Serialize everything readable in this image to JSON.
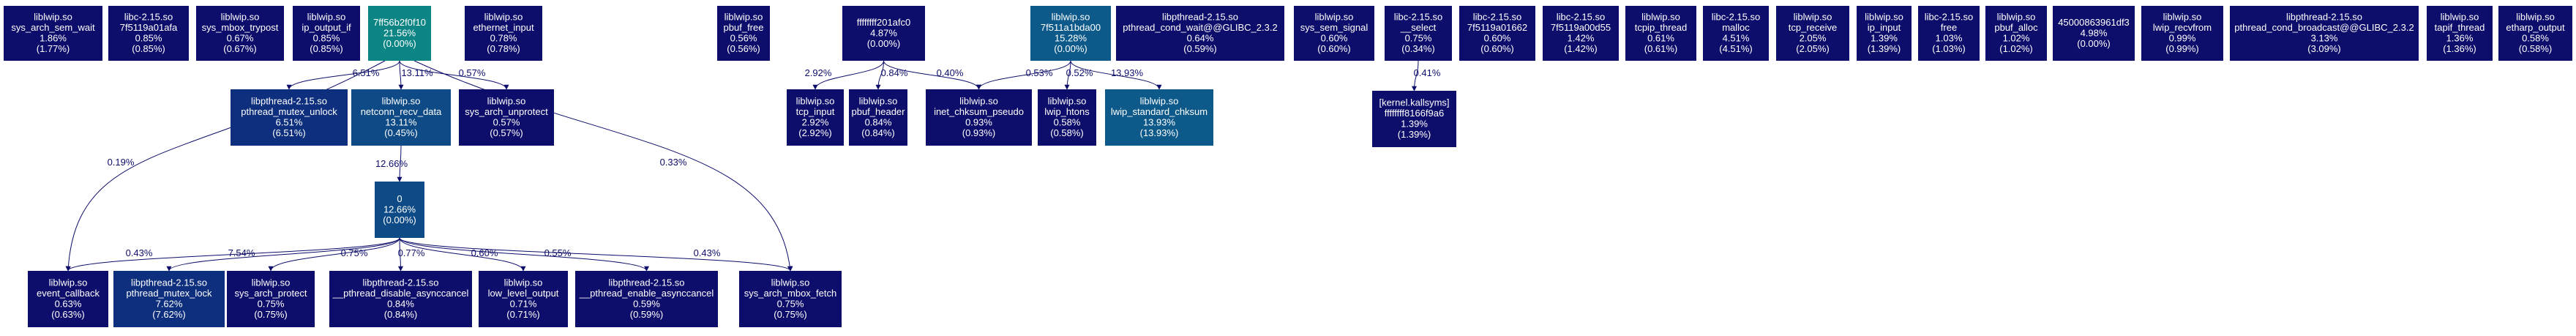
{
  "colors": {
    "dark_navy": "#0d0d6b",
    "navy": "#0d1a73",
    "blue_mid": "#0d2f7d",
    "blue": "#0d4a86",
    "steel_blue": "#0d5a8a",
    "teal": "#0d8585",
    "edge": "#0d0d6b"
  },
  "nodes": [
    {
      "id": "n_sys_arch_sem_wait",
      "color": "dark_navy",
      "lines": [
        "liblwip.so",
        "sys_arch_sem_wait",
        "1.86%",
        "(1.77%)"
      ]
    },
    {
      "id": "n_7f5119a01afa",
      "color": "dark_navy",
      "lines": [
        "libc-2.15.so",
        "7f5119a01afa",
        "0.85%",
        "(0.85%)"
      ]
    },
    {
      "id": "n_sys_mbox_trypost",
      "color": "dark_navy",
      "lines": [
        "liblwip.so",
        "sys_mbox_trypost",
        "0.67%",
        "(0.67%)"
      ]
    },
    {
      "id": "n_ip_output_if",
      "color": "dark_navy",
      "lines": [
        "liblwip.so",
        "ip_output_if",
        "0.85%",
        "(0.85%)"
      ]
    },
    {
      "id": "n_7ff56b2f0",
      "color": "teal",
      "lines": [
        "7ff56b2f0f10",
        "21.56%",
        "(0.00%)"
      ]
    },
    {
      "id": "n_ethernet_input",
      "color": "dark_navy",
      "lines": [
        "liblwip.so",
        "ethernet_input",
        "0.78%",
        "(0.78%)"
      ]
    },
    {
      "id": "n_pbuf_free",
      "color": "dark_navy",
      "lines": [
        "liblwip.so",
        "pbuf_free",
        "0.56%",
        "(0.56%)"
      ]
    },
    {
      "id": "n_ffff201afc0",
      "color": "dark_navy",
      "lines": [
        "ffffffff201afc0",
        "4.87%",
        "(0.00%)"
      ]
    },
    {
      "id": "n_7f511a1bda00",
      "color": "steel_blue",
      "lines": [
        "liblwip.so",
        "7f511a1bda00",
        "15.28%",
        "(0.00%)"
      ]
    },
    {
      "id": "n_pthread_cond_wait",
      "color": "dark_navy",
      "lines": [
        "libpthread-2.15.so",
        "pthread_cond_wait@@GLIBC_2.3.2",
        "0.64%",
        "(0.59%)"
      ]
    },
    {
      "id": "n_sys_sem_signal",
      "color": "dark_navy",
      "lines": [
        "liblwip.so",
        "sys_sem_signal",
        "0.60%",
        "(0.60%)"
      ]
    },
    {
      "id": "n_select",
      "color": "dark_navy",
      "lines": [
        "libc-2.15.so",
        "__select",
        "0.75%",
        "(0.34%)"
      ]
    },
    {
      "id": "n_7f5119a01662",
      "color": "dark_navy",
      "lines": [
        "libc-2.15.so",
        "7f5119a01662",
        "0.60%",
        "(0.60%)"
      ]
    },
    {
      "id": "n_7f5119a00d55",
      "color": "dark_navy",
      "lines": [
        "libc-2.15.so",
        "7f5119a00d55",
        "1.42%",
        "(1.42%)"
      ]
    },
    {
      "id": "n_tcpip_thread",
      "color": "dark_navy",
      "lines": [
        "liblwip.so",
        "tcpip_thread",
        "0.61%",
        "(0.61%)"
      ]
    },
    {
      "id": "n_malloc",
      "color": "dark_navy",
      "lines": [
        "libc-2.15.so",
        "malloc",
        "4.51%",
        "(4.51%)"
      ]
    },
    {
      "id": "n_tcp_receive",
      "color": "dark_navy",
      "lines": [
        "liblwip.so",
        "tcp_receive",
        "2.05%",
        "(2.05%)"
      ]
    },
    {
      "id": "n_ip_input",
      "color": "dark_navy",
      "lines": [
        "liblwip.so",
        "ip_input",
        "1.39%",
        "(1.39%)"
      ]
    },
    {
      "id": "n_free",
      "color": "dark_navy",
      "lines": [
        "libc-2.15.so",
        "free",
        "1.03%",
        "(1.03%)"
      ]
    },
    {
      "id": "n_pbuf_alloc",
      "color": "dark_navy",
      "lines": [
        "liblwip.so",
        "pbuf_alloc",
        "1.02%",
        "(1.02%)"
      ]
    },
    {
      "id": "n_45000863961df3",
      "color": "dark_navy",
      "lines": [
        "45000863961df3",
        "4.98%",
        "(0.00%)"
      ]
    },
    {
      "id": "n_lwip_recvfrom",
      "color": "dark_navy",
      "lines": [
        "liblwip.so",
        "lwip_recvfrom",
        "0.99%",
        "(0.99%)"
      ]
    },
    {
      "id": "n_pthread_cond_broadcast",
      "color": "dark_navy",
      "lines": [
        "libpthread-2.15.so",
        "pthread_cond_broadcast@@GLIBC_2.3.2",
        "3.13%",
        "(3.09%)"
      ]
    },
    {
      "id": "n_tapif_thread",
      "color": "dark_navy",
      "lines": [
        "liblwip.so",
        "tapif_thread",
        "1.36%",
        "(1.36%)"
      ]
    },
    {
      "id": "n_etharp_output",
      "color": "dark_navy",
      "lines": [
        "liblwip.so",
        "etharp_output",
        "0.58%",
        "(0.58%)"
      ]
    },
    {
      "id": "n_pthread_mutex_unlock",
      "color": "blue_mid",
      "lines": [
        "libpthread-2.15.so",
        "pthread_mutex_unlock",
        "6.51%",
        "(6.51%)"
      ]
    },
    {
      "id": "n_netconn_recv_data",
      "color": "blue",
      "lines": [
        "liblwip.so",
        "netconn_recv_data",
        "13.11%",
        "(0.45%)"
      ]
    },
    {
      "id": "n_sys_arch_unprotect",
      "color": "dark_navy",
      "lines": [
        "liblwip.so",
        "sys_arch_unprotect",
        "0.57%",
        "(0.57%)"
      ]
    },
    {
      "id": "n_tcp_input",
      "color": "dark_navy",
      "lines": [
        "liblwip.so",
        "tcp_input",
        "2.92%",
        "(2.92%)"
      ]
    },
    {
      "id": "n_pbuf_header",
      "color": "dark_navy",
      "lines": [
        "liblwip.so",
        "pbuf_header",
        "0.84%",
        "(0.84%)"
      ]
    },
    {
      "id": "n_inet_chksum_pseudo",
      "color": "dark_navy",
      "lines": [
        "liblwip.so",
        "inet_chksum_pseudo",
        "0.93%",
        "(0.93%)"
      ]
    },
    {
      "id": "n_lwip_htons",
      "color": "dark_navy",
      "lines": [
        "liblwip.so",
        "lwip_htons",
        "0.58%",
        "(0.58%)"
      ]
    },
    {
      "id": "n_lwip_standard_chksum",
      "color": "steel_blue",
      "lines": [
        "liblwip.so",
        "lwip_standard_chksum",
        "13.93%",
        "(13.93%)"
      ]
    },
    {
      "id": "n_kallsyms",
      "color": "dark_navy",
      "lines": [
        "[kernel.kallsyms]",
        "ffffffff8166f9a6",
        "1.39%",
        "(1.39%)"
      ]
    },
    {
      "id": "n_zero",
      "color": "blue",
      "lines": [
        "0",
        "12.66%",
        "(0.00%)"
      ]
    },
    {
      "id": "n_event_callback",
      "color": "dark_navy",
      "lines": [
        "liblwip.so",
        "event_callback",
        "0.63%",
        "(0.63%)"
      ]
    },
    {
      "id": "n_pthread_mutex_lock",
      "color": "blue_mid",
      "lines": [
        "libpthread-2.15.so",
        "pthread_mutex_lock",
        "7.62%",
        "(7.62%)"
      ]
    },
    {
      "id": "n_sys_arch_protect",
      "color": "dark_navy",
      "lines": [
        "liblwip.so",
        "sys_arch_protect",
        "0.75%",
        "(0.75%)"
      ]
    },
    {
      "id": "n_pthread_disable_asynccancel",
      "color": "dark_navy",
      "lines": [
        "libpthread-2.15.so",
        "__pthread_disable_asynccancel",
        "0.84%",
        "(0.84%)"
      ]
    },
    {
      "id": "n_low_level_output",
      "color": "dark_navy",
      "lines": [
        "liblwip.so",
        "low_level_output",
        "0.71%",
        "(0.71%)"
      ]
    },
    {
      "id": "n_pthread_enable_asynccancel",
      "color": "dark_navy",
      "lines": [
        "libpthread-2.15.so",
        "__pthread_enable_asynccancel",
        "0.59%",
        "(0.59%)"
      ]
    },
    {
      "id": "n_sys_arch_mbox_fetch",
      "color": "dark_navy",
      "lines": [
        "liblwip.so",
        "sys_arch_mbox_fetch",
        "0.75%",
        "(0.75%)"
      ]
    }
  ],
  "edges": [
    {
      "from": "n_7ff56b2f0",
      "to": "n_pthread_mutex_unlock",
      "label": "6.51%"
    },
    {
      "from": "n_7ff56b2f0",
      "to": "n_netconn_recv_data",
      "label": "13.11%"
    },
    {
      "from": "n_7ff56b2f0",
      "to": "n_sys_arch_unprotect",
      "label": "0.57%"
    },
    {
      "from": "n_7ff56b2f0",
      "to": "n_event_callback",
      "label": "0.19%"
    },
    {
      "from": "n_7ff56b2f0",
      "to": "n_sys_arch_mbox_fetch",
      "label": "0.33%"
    },
    {
      "from": "n_netconn_recv_data",
      "to": "n_zero",
      "label": "12.66%"
    },
    {
      "from": "n_zero",
      "to": "n_event_callback",
      "label": "0.43%"
    },
    {
      "from": "n_zero",
      "to": "n_pthread_mutex_lock",
      "label": "7.54%"
    },
    {
      "from": "n_zero",
      "to": "n_sys_arch_protect",
      "label": "0.75%"
    },
    {
      "from": "n_zero",
      "to": "n_pthread_disable_asynccancel",
      "label": "0.77%"
    },
    {
      "from": "n_zero",
      "to": "n_low_level_output",
      "label": "0.60%"
    },
    {
      "from": "n_zero",
      "to": "n_pthread_enable_asynccancel",
      "label": "0.55%"
    },
    {
      "from": "n_zero",
      "to": "n_sys_arch_mbox_fetch",
      "label": "0.43%"
    },
    {
      "from": "n_ffff201afc0",
      "to": "n_tcp_input",
      "label": "2.92%"
    },
    {
      "from": "n_ffff201afc0",
      "to": "n_pbuf_header",
      "label": "0.84%"
    },
    {
      "from": "n_ffff201afc0",
      "to": "n_inet_chksum_pseudo",
      "label": "0.40%"
    },
    {
      "from": "n_7f511a1bda00",
      "to": "n_inet_chksum_pseudo",
      "label": "0.53%"
    },
    {
      "from": "n_7f511a1bda00",
      "to": "n_lwip_htons",
      "label": "0.52%"
    },
    {
      "from": "n_7f511a1bda00",
      "to": "n_lwip_standard_chksum",
      "label": "13.93%"
    },
    {
      "from": "n_select",
      "to": "n_kallsyms",
      "label": "0.41%"
    }
  ]
}
